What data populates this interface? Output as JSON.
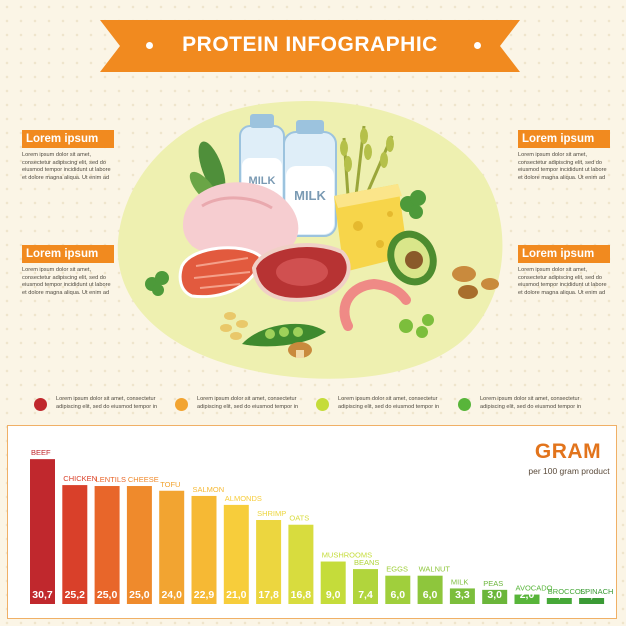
{
  "title": "PROTEIN INFOGRAPHIC",
  "panels": [
    {
      "heading": "Lorem ipsum",
      "text": "Lorem ipsum dolor sit amet, consectetur adipiscing elit, sed do eiusmod tempor incididunt ut labore et dolore magna aliqua. Ut enim ad"
    },
    {
      "heading": "Lorem ipsum",
      "text": "Lorem ipsum dolor sit amet, consectetur adipiscing elit, sed do eiusmod tempor incididunt ut labore et dolore magna aliqua. Ut enim ad"
    },
    {
      "heading": "Lorem ipsum",
      "text": "Lorem ipsum dolor sit amet, consectetur adipiscing elit, sed do eiusmod tempor incididunt ut labore et dolore magna aliqua. Ut enim ad"
    },
    {
      "heading": "Lorem ipsum",
      "text": "Lorem ipsum dolor sit amet, consectetur adipiscing elit, sed do eiusmod tempor incididunt ut labore et dolore magna aliqua. Ut enim ad"
    }
  ],
  "legend": [
    {
      "color": "#c0282d",
      "text": "Lorem ipsum dolor sit amet, consectetur adipiscing elit, sed do eiusmod tempor in"
    },
    {
      "color": "#f2a431",
      "text": "Lorem ipsum dolor sit amet, consectetur adipiscing elit, sed do eiusmod tempor in"
    },
    {
      "color": "#c5dc3a",
      "text": "Lorem ipsum dolor sit amet, consectetur adipiscing elit, sed do eiusmod tempor in"
    },
    {
      "color": "#58b53a",
      "text": "Lorem ipsum dolor sit amet, consectetur adipiscing elit, sed do eiusmod tempor in"
    }
  ],
  "illustration": {
    "milk_labels": [
      "MILK",
      "MILK"
    ]
  },
  "chart_data": {
    "type": "bar",
    "title": "GRAM",
    "subtitle": "per 100 gram product",
    "xlabel": "",
    "ylabel": "",
    "ylim": [
      0,
      32
    ],
    "grid": false,
    "categories": [
      "BEEF",
      "CHICKEN",
      "LENTILS",
      "CHEESE",
      "TOFU",
      "SALMON",
      "ALMONDS",
      "SHRIMP",
      "OATS",
      "MUSHROOMS",
      "BEANS",
      "EGGS",
      "WALNUT",
      "MILK",
      "PEAS",
      "AVOCADO",
      "BROCCOLI",
      "SPINACH"
    ],
    "values": [
      30.7,
      25.2,
      25.0,
      25.0,
      24.0,
      22.9,
      21.0,
      17.8,
      16.8,
      9.0,
      7.4,
      6.0,
      6.0,
      3.3,
      3.0,
      2.0,
      1.0,
      0.8
    ],
    "value_labels": [
      "30,7",
      "25,2",
      "25,0",
      "25,0",
      "24,0",
      "22,9",
      "21,0",
      "17,8",
      "16,8",
      "9,0",
      "7,4",
      "6,0",
      "6,0",
      "3,3",
      "3,0",
      "2,0",
      "1,0",
      "0,8"
    ],
    "colors": [
      "#c0282d",
      "#d9402a",
      "#e8662a",
      "#ef8a2c",
      "#f2a431",
      "#f6b934",
      "#f7cd3b",
      "#ecd63f",
      "#d8dc3e",
      "#c5dc3a",
      "#b1d53c",
      "#a0cf3c",
      "#8ec63c",
      "#7cbe3c",
      "#6bb63a",
      "#58b53a",
      "#46a838",
      "#3a9a35"
    ]
  }
}
